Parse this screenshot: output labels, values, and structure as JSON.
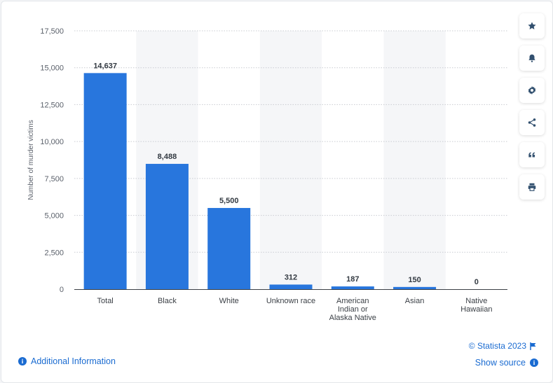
{
  "colors": {
    "bar": "#2876dd",
    "band": "#f5f6f8",
    "grid": "#c9ccd1",
    "axis_text": "#5b616b",
    "value_text": "#333a42",
    "link": "#1a6bd1",
    "icon": "#32506f"
  },
  "chart_data": {
    "type": "bar",
    "categories": [
      "Total",
      "Black",
      "White",
      "Unknown race",
      "American Indian or Alaska Native",
      "Asian",
      "Native Hawaiian"
    ],
    "category_lines": [
      [
        "Total"
      ],
      [
        "Black"
      ],
      [
        "White"
      ],
      [
        "Unknown race"
      ],
      [
        "American",
        "Indian or",
        "Alaska Native"
      ],
      [
        "Asian"
      ],
      [
        "Native",
        "Hawaiian"
      ]
    ],
    "values": [
      14637,
      8488,
      5500,
      312,
      187,
      150,
      0
    ],
    "value_labels": [
      "14,637",
      "8,488",
      "5,500",
      "312",
      "187",
      "150",
      "0"
    ],
    "ylabel": "Number of murder victims",
    "ylim": [
      0,
      17500
    ],
    "yticks": [
      0,
      2500,
      5000,
      7500,
      10000,
      12500,
      15000,
      17500
    ],
    "ytick_labels": [
      "0",
      "2,500",
      "5,000",
      "7,500",
      "10,000",
      "12,500",
      "15,000",
      "17,500"
    ],
    "grid": true,
    "alternating_bands": true
  },
  "side_buttons": [
    {
      "icon": "star-icon",
      "name": "favorite-button"
    },
    {
      "icon": "bell-icon",
      "name": "notification-button"
    },
    {
      "icon": "gear-icon",
      "name": "settings-button"
    },
    {
      "icon": "share-icon",
      "name": "share-button"
    },
    {
      "icon": "quote-icon",
      "name": "cite-button"
    },
    {
      "icon": "print-icon",
      "name": "print-button"
    }
  ],
  "footer": {
    "additional_info": "Additional Information",
    "copyright": "© Statista 2023",
    "show_source": "Show source"
  }
}
